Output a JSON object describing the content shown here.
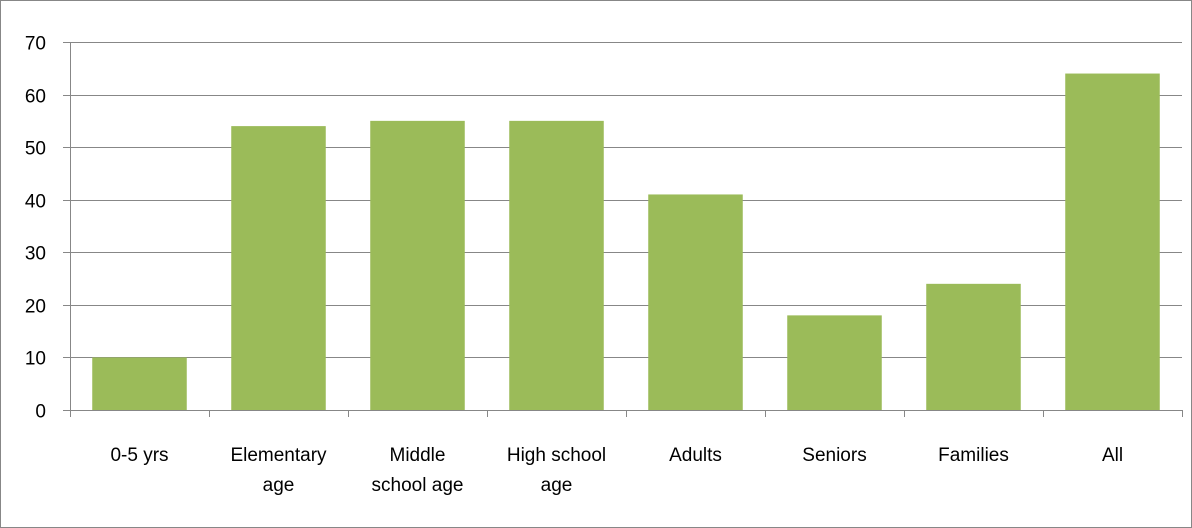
{
  "chart_data": {
    "type": "bar",
    "title": "",
    "xlabel": "",
    "ylabel": "",
    "categories": [
      [
        "0-5 yrs"
      ],
      [
        "Elementary",
        "age"
      ],
      [
        "Middle",
        "school age"
      ],
      [
        "High school",
        "age"
      ],
      [
        "Adults"
      ],
      [
        "Seniors"
      ],
      [
        "Families"
      ],
      [
        "All"
      ]
    ],
    "values": [
      10,
      54,
      55,
      55,
      41,
      18,
      24,
      64
    ],
    "ylim": [
      0,
      70
    ],
    "yticks": [
      0,
      10,
      20,
      30,
      40,
      50,
      60,
      70
    ],
    "grid": true,
    "legend": "none",
    "bar_color": "#9BBB59",
    "grid_color": "#878787",
    "axis_color": "#878787"
  }
}
